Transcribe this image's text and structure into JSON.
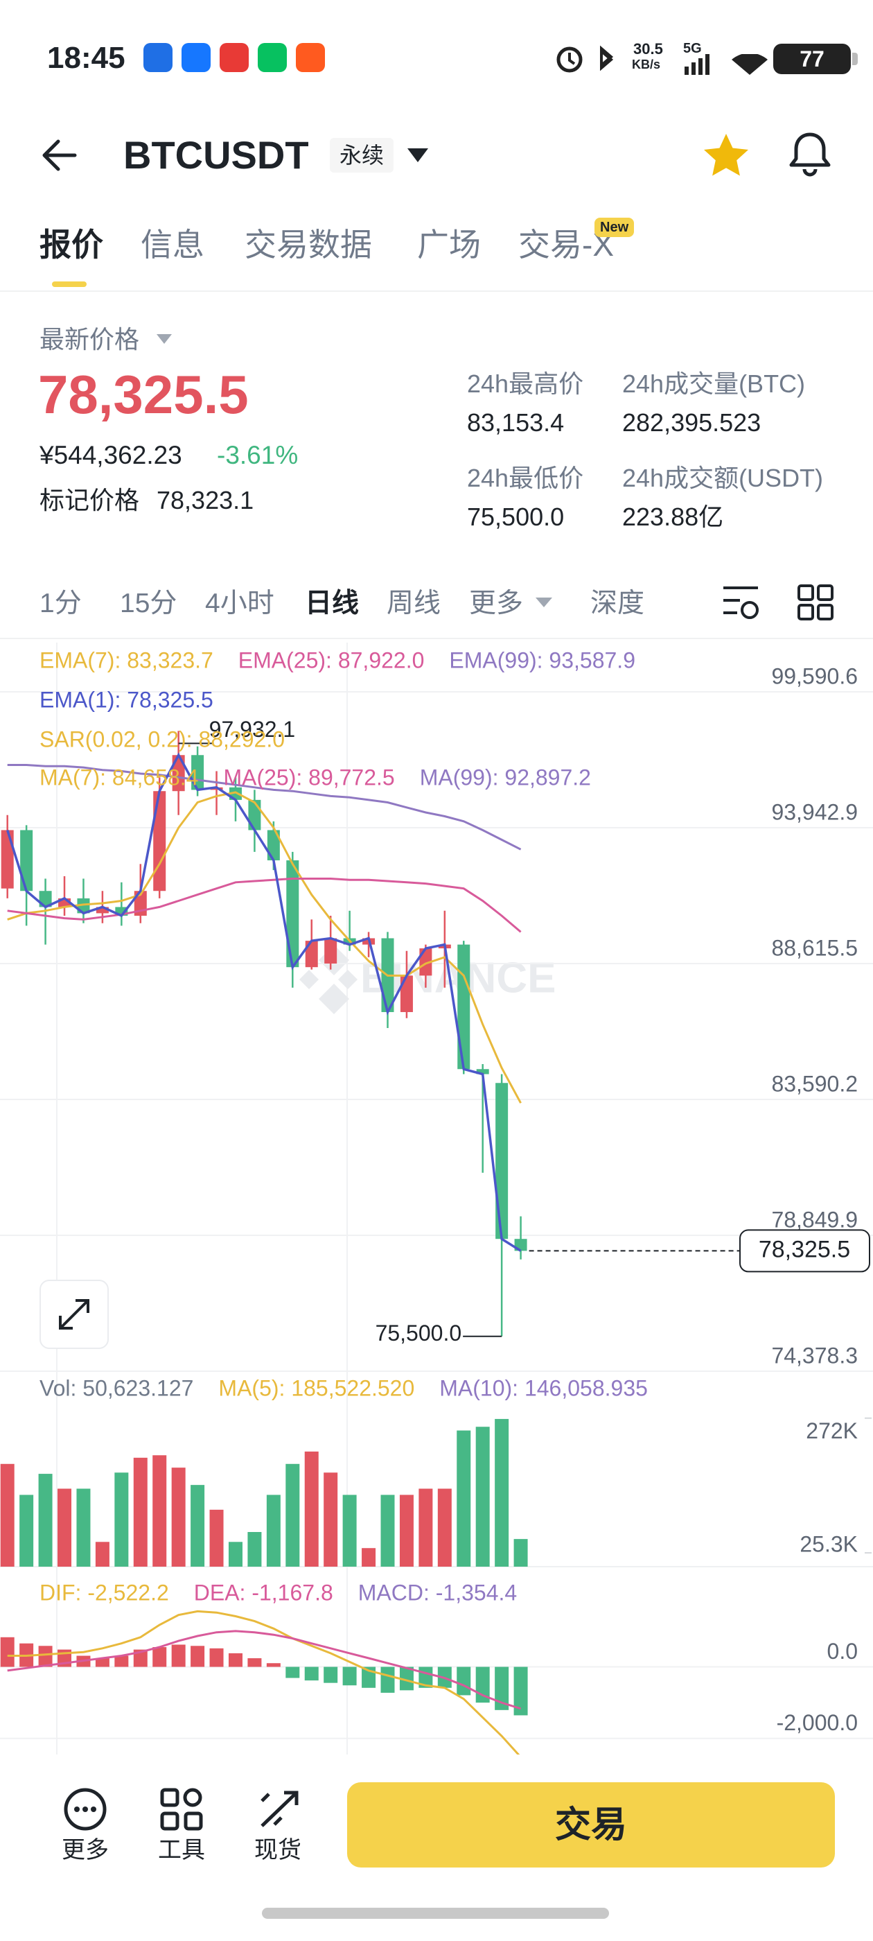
{
  "status_bar": {
    "time": "18:45",
    "speed": "30.5",
    "speed_unit": "KB/s",
    "network": "5G",
    "battery": "77"
  },
  "header": {
    "symbol": "BTCUSDT",
    "badge": "永续"
  },
  "tabs": [
    {
      "label": "报价",
      "active": true
    },
    {
      "label": "信息"
    },
    {
      "label": "交易数据"
    },
    {
      "label": "广场"
    },
    {
      "label": "交易-X",
      "badge": "New"
    }
  ],
  "price": {
    "label": "最新价格",
    "last": "78,325.5",
    "cny": "¥544,362.23",
    "change": "-3.61%",
    "mark_label": "标记价格",
    "mark": "78,323.1"
  },
  "stats": [
    {
      "label": "24h最高价",
      "value": "83,153.4"
    },
    {
      "label": "24h成交量(BTC)",
      "value": "282,395.523"
    },
    {
      "label": "24h最低价",
      "value": "75,500.0"
    },
    {
      "label": "24h成交额(USDT)",
      "value": "223.88亿"
    }
  ],
  "intervals": [
    {
      "label": "1分"
    },
    {
      "label": "15分"
    },
    {
      "label": "4小时"
    },
    {
      "label": "日线",
      "active": true
    },
    {
      "label": "周线"
    },
    {
      "label": "更多",
      "menu": true
    },
    {
      "label": "深度"
    }
  ],
  "chart_data": {
    "type": "candlestick",
    "log_scale": true,
    "grid": true,
    "watermark": "BINANCE",
    "up_color": "#e2555f",
    "down_color": "#47b886",
    "close_line_color": "#4b57c9",
    "candles": {
      "open": [
        91521,
        93846,
        91425,
        90795,
        91134,
        90553,
        90795,
        90456,
        91425,
        95432,
        96921,
        95483,
        95586,
        95073,
        93846,
        92635,
        88479,
        88616,
        89585,
        89342,
        89585,
        86788,
        88159,
        89197,
        89342,
        84687,
        84184,
        78728
      ],
      "high": [
        94457,
        94046,
        91909,
        92006,
        91909,
        91425,
        91764,
        92490,
        95997,
        97932.1,
        97281,
        96254,
        95997,
        95483,
        94200,
        92974,
        90311,
        90456,
        90650,
        89827,
        89827,
        89100,
        89342,
        90650,
        89488,
        84869,
        84504,
        79496
      ],
      "low": [
        91134,
        90069,
        89342,
        90456,
        90166,
        90166,
        90069,
        90166,
        91134,
        94457,
        95227,
        94457,
        94200,
        92974,
        92248,
        87702,
        88388,
        88388,
        89100,
        88858,
        86194,
        86560,
        87702,
        87702,
        84504,
        80997,
        75500,
        78037
      ],
      "close": [
        93846,
        91425,
        90795,
        91134,
        90553,
        90795,
        90456,
        91425,
        95432,
        96921,
        95483,
        95586,
        95073,
        93846,
        92635,
        88479,
        89488,
        89585,
        89342,
        89585,
        86788,
        88159,
        89197,
        89342,
        84687,
        84504,
        78728,
        78325.5
      ]
    },
    "overlays": [
      {
        "color": "#e8b93c",
        "values": [
          90311,
          90553,
          90650,
          90795,
          90892,
          90941,
          91037,
          91280,
          92490,
          93943,
          94970,
          95227,
          95381,
          94970,
          93943,
          92490,
          91280,
          90311,
          89488,
          88713,
          88159,
          88159,
          88616,
          88858,
          88159,
          86331,
          84732,
          83461
        ]
      },
      {
        "color": "#d85a9a",
        "values": [
          90650,
          90553,
          90456,
          90359,
          90311,
          90408,
          90504,
          90650,
          90795,
          91037,
          91280,
          91521,
          91764,
          91812,
          91861,
          91909,
          91909,
          91909,
          91861,
          91861,
          91812,
          91764,
          91715,
          91618,
          91521,
          91037,
          90456,
          89827
        ]
      },
      {
        "color": "#8f78c2",
        "values": [
          96511,
          96511,
          96460,
          96460,
          96408,
          96305,
          96254,
          96151,
          96100,
          95997,
          95894,
          95792,
          95689,
          95586,
          95483,
          95432,
          95330,
          95227,
          95175,
          95073,
          94970,
          94765,
          94560,
          94405,
          94200,
          93846,
          93459,
          93071
        ]
      }
    ],
    "ylim": [
      74378.3,
      101720
    ],
    "yticks": [
      {
        "value": 99590.6,
        "label": "99,590.6"
      },
      {
        "value": 93942.9,
        "label": "93,942.9"
      },
      {
        "value": 88615.5,
        "label": "88,615.5"
      },
      {
        "value": 83590.2,
        "label": "83,590.2"
      },
      {
        "value": 78849.9,
        "label": "78,849.9"
      },
      {
        "value": 74378.3,
        "label": "74,378.3"
      }
    ],
    "high_marker": {
      "value": 97932.1,
      "label": "97,932.1"
    },
    "low_marker": {
      "value": 75500,
      "label": "75,500.0"
    },
    "last_price": {
      "value": 78325.5,
      "label": "78,325.5"
    },
    "legend": [
      [
        {
          "text": "EMA(7): 83,323.7",
          "color": "#e8b93c"
        },
        {
          "text": "EMA(25): 87,922.0",
          "color": "#d85a9a"
        },
        {
          "text": "EMA(99): 93,587.9",
          "color": "#8f78c2"
        }
      ],
      [
        {
          "text": "EMA(1): 78,325.5",
          "color": "#4b57c9"
        }
      ],
      [
        {
          "text": "SAR(0.02, 0.2): 88,292.0",
          "color": "#e8b93c"
        }
      ],
      [
        {
          "text": "MA(7): 84,658.4",
          "color": "#e8b93c"
        },
        {
          "text": "MA(25): 89,772.5",
          "color": "#d85a9a"
        },
        {
          "text": "MA(99): 92,897.2",
          "color": "#8f78c2"
        }
      ]
    ],
    "volume": {
      "values": [
        188161,
        131486,
        170025,
        142821,
        142821,
        45340,
        172292,
        199496,
        204030,
        181360,
        149622,
        104282,
        45340,
        63476,
        131486,
        188161,
        210831,
        172292,
        131486,
        34005,
        131486,
        131486,
        142821,
        142821,
        249370,
        256171,
        270500,
        50623.127
      ],
      "ylim": [
        0,
        358000
      ],
      "yticks": [
        {
          "value": 272000,
          "label": "272K"
        },
        {
          "value": 25300,
          "label": "25.3K"
        }
      ],
      "legend": [
        {
          "text": "Vol: 50,623.127",
          "color": "#707a8a"
        },
        {
          "text": "MA(5): 185,522.520",
          "color": "#e8b93c"
        },
        {
          "text": "MA(10): 146,058.935",
          "color": "#8f78c2"
        }
      ]
    },
    "macd": {
      "histogram": [
        828,
        655,
        586,
        483,
        310,
        241,
        310,
        483,
        552,
        621,
        586,
        517,
        380,
        241,
        103,
        -310,
        -380,
        -448,
        -517,
        -586,
        -724,
        -655,
        -586,
        -586,
        -793,
        -1000,
        -1207,
        -1354.4
      ],
      "dif": {
        "color": "#e8b93c",
        "values": [
          310,
          310,
          345,
          380,
          414,
          518,
          656,
          828,
          1173,
          1449,
          1553,
          1518,
          1415,
          1277,
          1070,
          794,
          587,
          380,
          138,
          -104,
          -242,
          -380,
          -518,
          -587,
          -897,
          -1415,
          -1932,
          -2522.2
        ]
      },
      "dea": {
        "color": "#d85a9a",
        "values": [
          -104,
          -35,
          35,
          104,
          173,
          242,
          311,
          414,
          552,
          725,
          863,
          966,
          1001,
          966,
          897,
          794,
          656,
          518,
          380,
          242,
          104,
          -35,
          -173,
          -311,
          -518,
          -794,
          -1001,
          -1167.8
        ]
      },
      "ylim": [
        -2450,
        2800
      ],
      "yticks": [
        {
          "value": 0,
          "label": "0.0"
        },
        {
          "value": -2000,
          "label": "-2,000.0"
        }
      ],
      "legend": [
        {
          "text": "DIF: -2,522.2",
          "color": "#e8b93c"
        },
        {
          "text": "DEA: -1,167.8",
          "color": "#d85a9a"
        },
        {
          "text": "MACD: -1,354.4",
          "color": "#8f78c2"
        }
      ]
    }
  },
  "bottom_nav": {
    "items": [
      "更多",
      "工具",
      "现货"
    ],
    "trade_button": "交易"
  }
}
